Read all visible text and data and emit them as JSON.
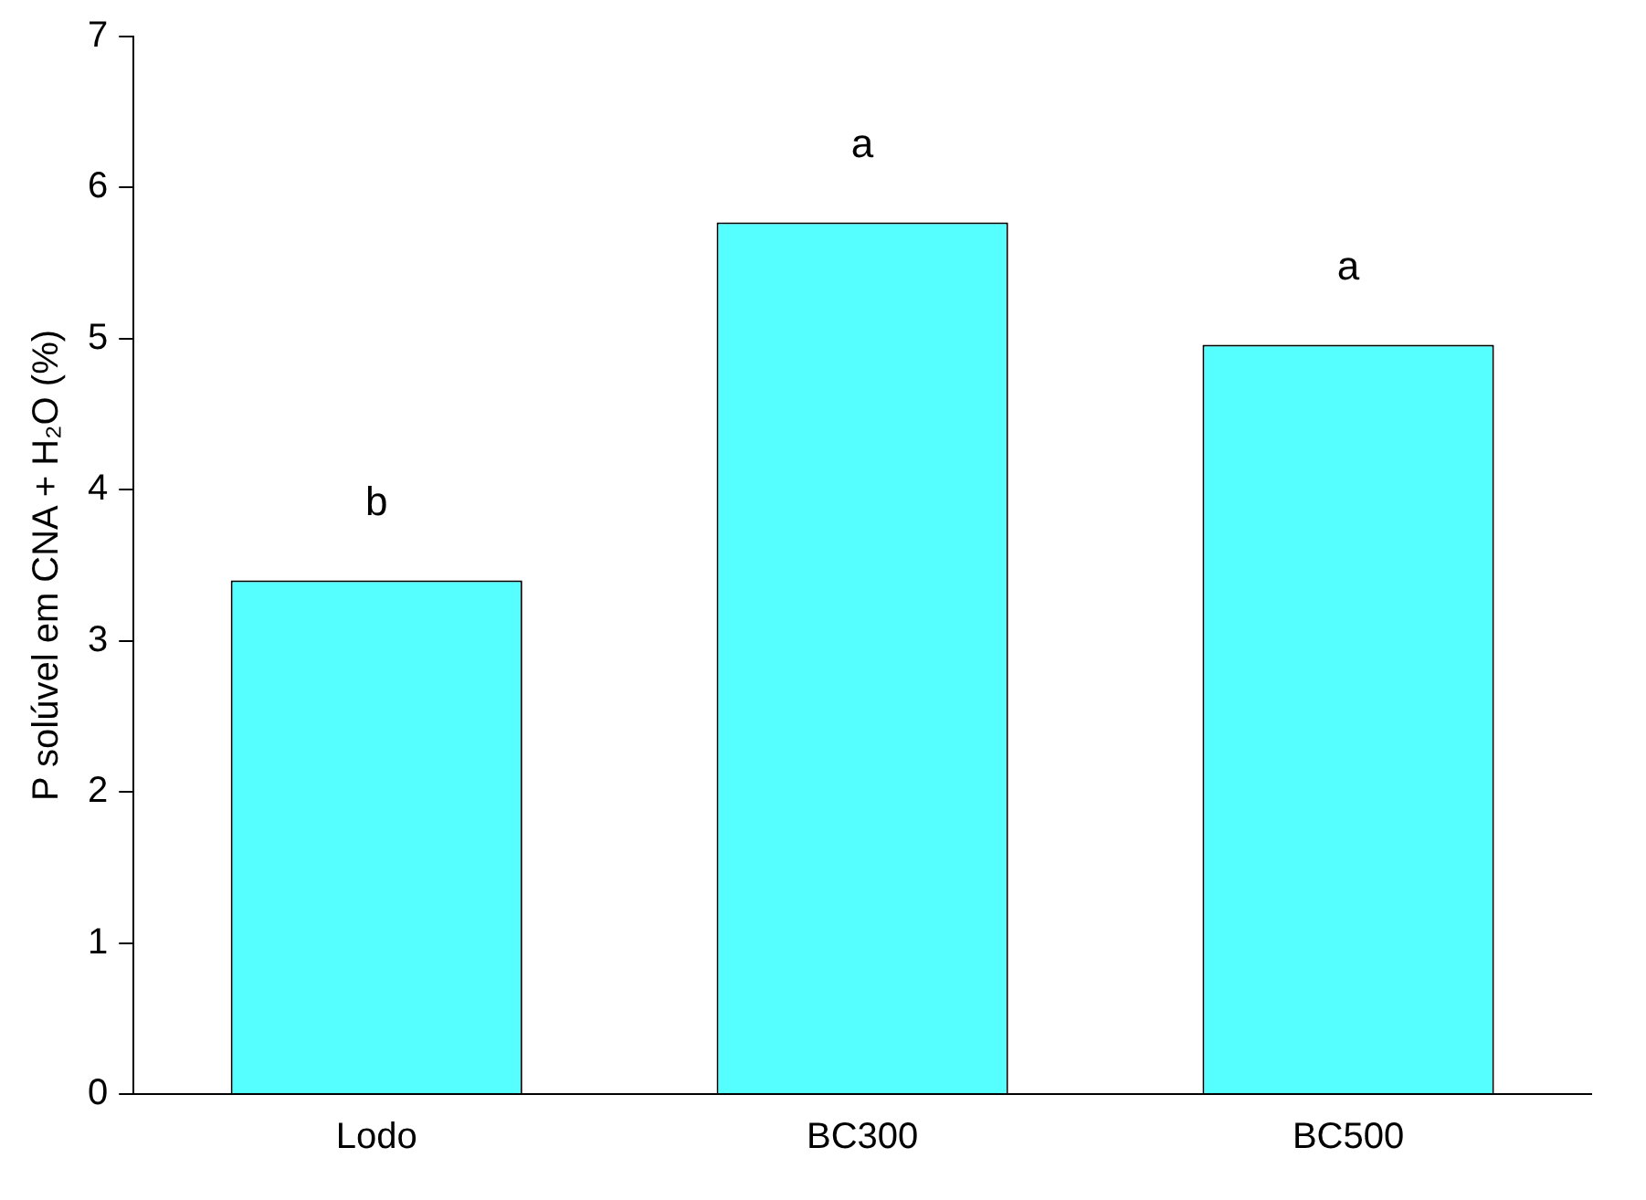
{
  "chart_data": {
    "type": "bar",
    "ylabel": "P solúvel em CNA + H₂O (%)",
    "categories": [
      "Lodo",
      "BC300",
      "BC500"
    ],
    "values": [
      3.4,
      5.77,
      4.96
    ],
    "color": "#55ffff",
    "ylim": [
      0,
      7
    ],
    "yticks": [
      0,
      1,
      2,
      3,
      4,
      5,
      6,
      7
    ],
    "grid": false,
    "legend": false,
    "annotations": [
      "b",
      "a",
      "a"
    ]
  }
}
